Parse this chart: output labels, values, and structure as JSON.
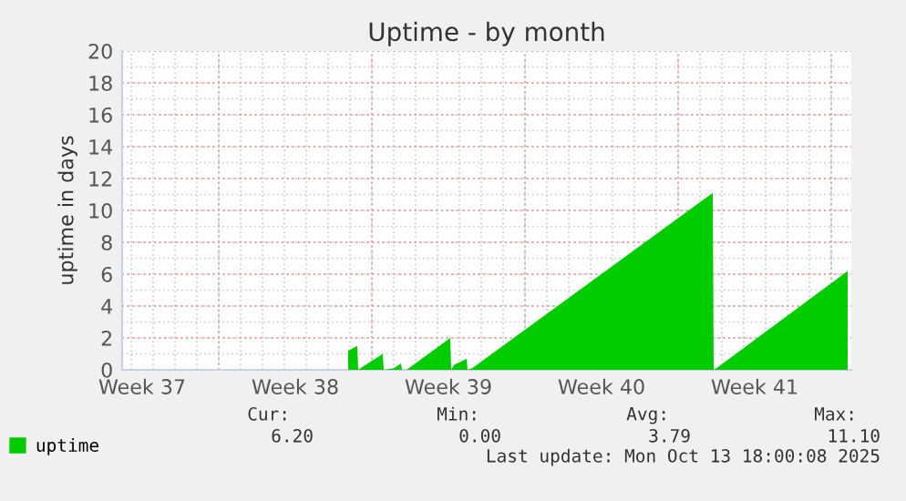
{
  "chart_data": {
    "type": "area",
    "title": "Uptime - by month",
    "ylabel": "uptime in days",
    "x": [
      "2025-09-20T22:00",
      "2025-09-21T08:00",
      "2025-09-21T09:00",
      "2025-09-21T14:00",
      "2025-09-22T12:00",
      "2025-09-22T13:00",
      "2025-09-23T00:00",
      "2025-09-23T08:00",
      "2025-09-23T09:00",
      "2025-09-23T14:00",
      "2025-09-25T14:00",
      "2025-09-25T15:00",
      "2025-09-25T18:00",
      "2025-09-26T08:00",
      "2025-09-26T09:00",
      "2025-09-26T14:00",
      "2025-10-07T14:00",
      "2025-10-07T15:00",
      "2025-10-07T18:00",
      "2025-10-13T18:00"
    ],
    "series": [
      {
        "name": "uptime",
        "color": "#00cc00",
        "values": [
          1.2,
          1.5,
          0,
          0.2,
          1.0,
          0,
          0.1,
          0.4,
          0,
          0,
          2.0,
          0,
          0.3,
          0.7,
          0,
          0.1,
          11.1,
          0,
          0.1,
          6.2
        ]
      }
    ],
    "xlim": [
      "2025-09-10T14:00",
      "2025-10-13T22:00"
    ],
    "xticks": [
      {
        "value": "2025-09-11T12:00",
        "label": "Week 37"
      },
      {
        "value": "2025-09-15T00:00",
        "label": null
      },
      {
        "value": "2025-09-18T12:00",
        "label": "Week 38"
      },
      {
        "value": "2025-09-22T00:00",
        "label": null
      },
      {
        "value": "2025-09-25T12:00",
        "label": "Week 39"
      },
      {
        "value": "2025-09-29T00:00",
        "label": null
      },
      {
        "value": "2025-10-02T12:00",
        "label": "Week 40"
      },
      {
        "value": "2025-10-06T00:00",
        "label": null
      },
      {
        "value": "2025-10-09T12:00",
        "label": "Week 41"
      },
      {
        "value": "2025-10-13T00:00",
        "label": null
      }
    ],
    "ylim": [
      0,
      20
    ],
    "yticks": [
      0,
      2,
      4,
      6,
      8,
      10,
      12,
      14,
      16,
      18,
      20
    ],
    "grid": true,
    "legend": "bottom",
    "annotations": [
      "Cur:",
      "Min:",
      "Avg:",
      "Max:",
      "6.20",
      "0.00",
      "3.79",
      "11.10",
      "Last update: Mon Oct 13 18:00:08 2025"
    ]
  }
}
